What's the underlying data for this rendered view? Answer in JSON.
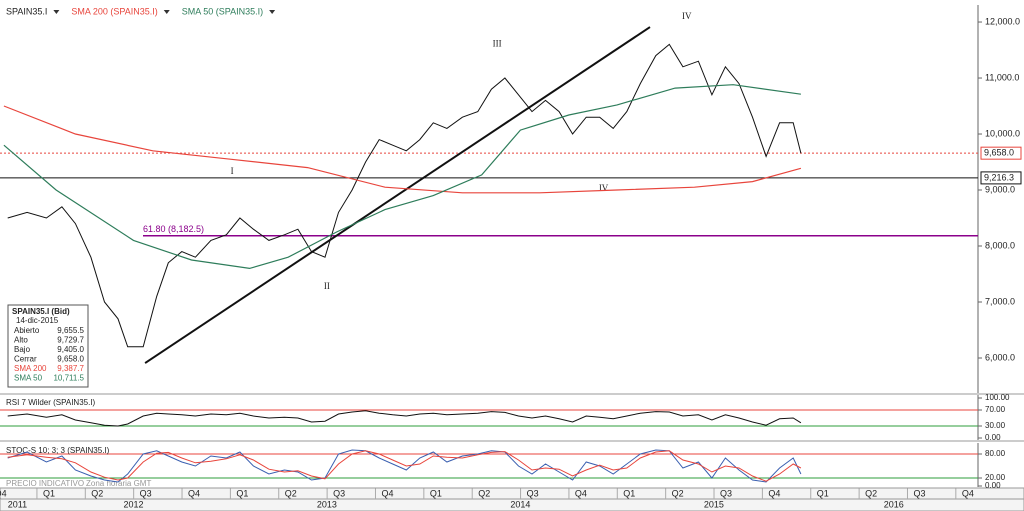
{
  "chart_data": [
    {
      "type": "line",
      "xlim": [
        2011.81,
        2016.85
      ],
      "ylim": [
        5375,
        12304
      ],
      "yticks": [
        {
          "value": 6000,
          "label": "6,000.0"
        },
        {
          "value": 7000,
          "label": "7,000.0"
        },
        {
          "value": 8000,
          "label": "8,000.0"
        },
        {
          "value": 9000,
          "label": "9,000.0"
        },
        {
          "value": 10000,
          "label": "10,000.0"
        },
        {
          "value": 11000,
          "label": "11,000.0"
        },
        {
          "value": 12000,
          "label": "12,000.0"
        }
      ],
      "xticks": [
        {
          "value": 2011.875,
          "label": "Q4"
        },
        {
          "value": 2012.125,
          "label": "Q1"
        },
        {
          "value": 2012.375,
          "label": "Q2"
        },
        {
          "value": 2012.625,
          "label": "Q3"
        },
        {
          "value": 2012.875,
          "label": "Q4"
        },
        {
          "value": 2013.125,
          "label": "Q1"
        },
        {
          "value": 2013.375,
          "label": "Q2"
        },
        {
          "value": 2013.625,
          "label": "Q3"
        },
        {
          "value": 2013.875,
          "label": "Q4"
        },
        {
          "value": 2014.125,
          "label": "Q1"
        },
        {
          "value": 2014.375,
          "label": "Q2"
        },
        {
          "value": 2014.625,
          "label": "Q3"
        },
        {
          "value": 2014.875,
          "label": "Q4"
        },
        {
          "value": 2015.125,
          "label": "Q1"
        },
        {
          "value": 2015.375,
          "label": "Q2"
        },
        {
          "value": 2015.625,
          "label": "Q3"
        },
        {
          "value": 2015.875,
          "label": "Q4"
        },
        {
          "value": 2016.125,
          "label": "Q1"
        },
        {
          "value": 2016.375,
          "label": "Q2"
        },
        {
          "value": 2016.625,
          "label": "Q3"
        },
        {
          "value": 2016.875,
          "label": "Q4"
        }
      ],
      "year_ticks": [
        {
          "value": 2011.9,
          "label": "2011"
        },
        {
          "value": 2012.5,
          "label": "2012"
        },
        {
          "value": 2013.5,
          "label": "2013"
        },
        {
          "value": 2014.5,
          "label": "2014"
        },
        {
          "value": 2015.5,
          "label": "2015"
        },
        {
          "value": 2016.43,
          "label": "2016"
        }
      ],
      "series": [
        {
          "name": "SPAIN35.I",
          "color": "#111111",
          "x": [
            2011.85,
            2011.95,
            2012.05,
            2012.13,
            2012.2,
            2012.28,
            2012.35,
            2012.42,
            2012.47,
            2012.55,
            2012.62,
            2012.68,
            2012.75,
            2012.82,
            2012.9,
            2012.98,
            2013.05,
            2013.12,
            2013.2,
            2013.28,
            2013.35,
            2013.42,
            2013.49,
            2013.56,
            2013.63,
            2013.7,
            2013.77,
            2013.84,
            2013.91,
            2013.98,
            2014.05,
            2014.12,
            2014.2,
            2014.28,
            2014.35,
            2014.42,
            2014.49,
            2014.56,
            2014.63,
            2014.7,
            2014.77,
            2014.84,
            2014.91,
            2014.98,
            2015.05,
            2015.12,
            2015.2,
            2015.27,
            2015.34,
            2015.42,
            2015.49,
            2015.56,
            2015.63,
            2015.7,
            2015.77,
            2015.84,
            2015.91,
            2015.95
          ],
          "values": [
            8500,
            8600,
            8500,
            8700,
            8400,
            7800,
            7000,
            6700,
            6200,
            6200,
            7100,
            7700,
            7900,
            7800,
            8100,
            8200,
            8500,
            8300,
            8100,
            8200,
            8300,
            7900,
            7800,
            8600,
            9000,
            9500,
            9900,
            9800,
            9700,
            9900,
            10200,
            10100,
            10300,
            10400,
            10800,
            11000,
            10700,
            10400,
            10600,
            10400,
            10000,
            10300,
            10300,
            10100,
            10400,
            10900,
            11400,
            11600,
            11200,
            11300,
            10700,
            11200,
            10900,
            10300,
            9600,
            10200,
            10200,
            9658
          ]
        },
        {
          "name": "SMA 200 (SPAIN35.I)",
          "color": "#e8453c",
          "x": [
            2011.83,
            2012.2,
            2012.6,
            2013.0,
            2013.4,
            2013.8,
            2014.2,
            2014.6,
            2015.0,
            2015.4,
            2015.7,
            2015.95
          ],
          "values": [
            10500,
            10000,
            9700,
            9550,
            9400,
            9050,
            8950,
            8950,
            9000,
            9050,
            9150,
            9387.7
          ]
        },
        {
          "name": "SMA 50 (SPAIN35.I)",
          "color": "#2e7d5b",
          "x": [
            2011.83,
            2012.1,
            2012.5,
            2012.8,
            2013.1,
            2013.3,
            2013.55,
            2013.8,
            2014.05,
            2014.3,
            2014.5,
            2014.75,
            2015.0,
            2015.3,
            2015.6,
            2015.95
          ],
          "values": [
            9800,
            9000,
            8100,
            7750,
            7600,
            7800,
            8250,
            8650,
            8900,
            9270,
            10070,
            10340,
            10520,
            10820,
            10880,
            10711.5
          ]
        }
      ],
      "hlines": [
        {
          "value": 9658,
          "label": "9,658.0",
          "color": "#e8453c",
          "style": "dotted"
        },
        {
          "value": 9216.3,
          "label": "9,216.3",
          "color": "#111111",
          "style": "solid"
        },
        {
          "value": 8182.5,
          "label": "61.80 (8,182.5)",
          "color": "#8b008b",
          "style": "fib"
        }
      ],
      "trendline": {
        "x": [
          2012.56,
          2015.17
        ],
        "y": [
          5910,
          11910
        ],
        "color": "#111111"
      },
      "annotations": [
        {
          "text": "I",
          "x": 2013.01,
          "y": 9320
        },
        {
          "text": "II",
          "x": 2013.5,
          "y": 7270
        },
        {
          "text": "III",
          "x": 2014.38,
          "y": 11600
        },
        {
          "text": "IV",
          "x": 2015.36,
          "y": 12090
        },
        {
          "text": "IV",
          "x": 2014.93,
          "y": 9020
        }
      ]
    },
    {
      "type": "line",
      "title": "RSI 7 Wilder (SPAIN35.I)",
      "xlim": [
        2011.81,
        2016.85
      ],
      "ylim": [
        -5,
        107.5
      ],
      "yticks": [
        {
          "value": 100,
          "label": "100.00"
        },
        {
          "value": 70,
          "label": "70.00"
        },
        {
          "value": 30,
          "label": "30.00"
        },
        {
          "value": 0,
          "label": "0.00"
        }
      ],
      "levels": [
        {
          "value": 70,
          "color": "#e8453c"
        },
        {
          "value": 30,
          "color": "#2e9d3b"
        }
      ],
      "series": [
        {
          "name": "RSI",
          "color": "#111111",
          "x": [
            2011.85,
            2011.95,
            2012.05,
            2012.13,
            2012.2,
            2012.28,
            2012.35,
            2012.42,
            2012.47,
            2012.55,
            2012.62,
            2012.68,
            2012.75,
            2012.82,
            2012.9,
            2012.98,
            2013.05,
            2013.12,
            2013.2,
            2013.28,
            2013.35,
            2013.42,
            2013.49,
            2013.56,
            2013.63,
            2013.7,
            2013.77,
            2013.84,
            2013.91,
            2013.98,
            2014.05,
            2014.12,
            2014.2,
            2014.28,
            2014.35,
            2014.42,
            2014.49,
            2014.56,
            2014.63,
            2014.7,
            2014.77,
            2014.84,
            2014.91,
            2014.98,
            2015.05,
            2015.12,
            2015.2,
            2015.27,
            2015.34,
            2015.42,
            2015.49,
            2015.56,
            2015.63,
            2015.7,
            2015.77,
            2015.84,
            2015.91,
            2015.95
          ],
          "values": [
            55,
            60,
            52,
            58,
            45,
            38,
            32,
            30,
            35,
            55,
            62,
            60,
            58,
            55,
            60,
            58,
            62,
            55,
            50,
            52,
            50,
            40,
            42,
            60,
            65,
            68,
            62,
            58,
            55,
            60,
            62,
            58,
            60,
            62,
            66,
            64,
            55,
            50,
            55,
            48,
            40,
            55,
            52,
            48,
            55,
            62,
            66,
            65,
            55,
            58,
            45,
            58,
            50,
            40,
            32,
            48,
            50,
            38
          ]
        }
      ]
    },
    {
      "type": "line",
      "title": "STOC-S 10; 3; 3 (SPAIN35.I)",
      "xlim": [
        2011.81,
        2016.85
      ],
      "ylim": [
        -2.5,
        107.5
      ],
      "yticks": [
        {
          "value": 80,
          "label": "80.00"
        },
        {
          "value": 20,
          "label": "20.00"
        },
        {
          "value": 0,
          "label": "0.00"
        }
      ],
      "levels": [
        {
          "value": 80,
          "color": "#e8453c"
        },
        {
          "value": 20,
          "color": "#2e9d3b"
        }
      ],
      "footer": [
        "PRECIO INDICATIVO",
        "Zona horaria GMT"
      ],
      "series": [
        {
          "name": "%K",
          "color": "#3a5fb0",
          "x": [
            2011.85,
            2011.95,
            2012.05,
            2012.13,
            2012.2,
            2012.28,
            2012.35,
            2012.42,
            2012.47,
            2012.55,
            2012.62,
            2012.68,
            2012.75,
            2012.82,
            2012.9,
            2012.98,
            2013.05,
            2013.12,
            2013.2,
            2013.28,
            2013.35,
            2013.42,
            2013.49,
            2013.56,
            2013.63,
            2013.7,
            2013.77,
            2013.84,
            2013.91,
            2013.98,
            2014.05,
            2014.12,
            2014.2,
            2014.28,
            2014.35,
            2014.42,
            2014.49,
            2014.56,
            2014.63,
            2014.7,
            2014.77,
            2014.84,
            2014.91,
            2014.98,
            2015.05,
            2015.12,
            2015.2,
            2015.27,
            2015.34,
            2015.42,
            2015.49,
            2015.56,
            2015.63,
            2015.7,
            2015.77,
            2015.84,
            2015.91,
            2015.95
          ],
          "values": [
            70,
            85,
            60,
            75,
            40,
            25,
            15,
            10,
            30,
            80,
            88,
            75,
            60,
            50,
            75,
            70,
            85,
            50,
            30,
            40,
            35,
            15,
            20,
            80,
            90,
            88,
            70,
            55,
            40,
            70,
            85,
            60,
            75,
            80,
            88,
            85,
            50,
            30,
            55,
            35,
            15,
            60,
            50,
            30,
            55,
            80,
            90,
            88,
            45,
            60,
            20,
            70,
            40,
            15,
            10,
            45,
            70,
            30
          ]
        },
        {
          "name": "%D",
          "color": "#e8453c",
          "x": [
            2011.85,
            2011.95,
            2012.05,
            2012.13,
            2012.2,
            2012.28,
            2012.35,
            2012.42,
            2012.47,
            2012.55,
            2012.62,
            2012.68,
            2012.75,
            2012.82,
            2012.9,
            2012.98,
            2013.05,
            2013.12,
            2013.2,
            2013.28,
            2013.35,
            2013.42,
            2013.49,
            2013.56,
            2013.63,
            2013.7,
            2013.77,
            2013.84,
            2013.91,
            2013.98,
            2014.05,
            2014.12,
            2014.2,
            2014.28,
            2014.35,
            2014.42,
            2014.49,
            2014.56,
            2014.63,
            2014.7,
            2014.77,
            2014.84,
            2014.91,
            2014.98,
            2015.05,
            2015.12,
            2015.2,
            2015.27,
            2015.34,
            2015.42,
            2015.49,
            2015.56,
            2015.63,
            2015.7,
            2015.77,
            2015.84,
            2015.91,
            2015.95
          ],
          "values": [
            72,
            78,
            72,
            68,
            58,
            35,
            22,
            15,
            20,
            60,
            82,
            84,
            70,
            58,
            62,
            68,
            78,
            65,
            42,
            35,
            38,
            25,
            18,
            55,
            80,
            88,
            80,
            65,
            50,
            55,
            75,
            72,
            70,
            78,
            84,
            86,
            65,
            40,
            45,
            42,
            25,
            40,
            52,
            40,
            45,
            70,
            85,
            88,
            65,
            55,
            35,
            50,
            45,
            25,
            12,
            30,
            55,
            45
          ]
        }
      ]
    }
  ],
  "info": {
    "title": "SPAIN35.I (Bid)",
    "date": "14-dic-2015",
    "rows": [
      {
        "label": "Abierto",
        "value": "9,655.5"
      },
      {
        "label": "Alto",
        "value": "9,729.7"
      },
      {
        "label": "Bajo",
        "value": "9,405.0"
      },
      {
        "label": "Cerrar",
        "value": "9,658.0"
      },
      {
        "label": "SMA 200",
        "value": "9,387.7"
      },
      {
        "label": "SMA 50",
        "value": "10,711.5"
      }
    ]
  }
}
